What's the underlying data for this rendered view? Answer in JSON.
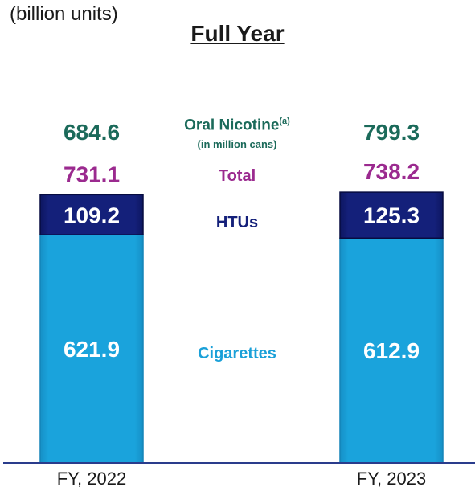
{
  "unit_label": "(billion units)",
  "colors": {
    "oral_nicotine": "#1b6a5a",
    "total": "#9b2a8f",
    "htus": "#14207a",
    "cigarettes": "#1aa0d8",
    "axis": "#2a3c8c"
  },
  "labels": {
    "oral_nicotine": "Oral Nicotine",
    "oral_nicotine_sup": "(a)",
    "oral_nicotine_unit": "(in million cans)",
    "total": "Total",
    "htus": "HTUs",
    "cigarettes": "Cigarettes"
  },
  "chart_data": {
    "type": "bar",
    "stacked": true,
    "title": "Full Year",
    "categories": [
      "FY, 2022",
      "FY, 2023"
    ],
    "series": [
      {
        "name": "Cigarettes",
        "values": [
          621.9,
          612.9
        ]
      },
      {
        "name": "HTUs",
        "values": [
          109.2,
          125.3
        ]
      }
    ],
    "totals": [
      731.1,
      738.2
    ],
    "oral_nicotine": [
      684.6,
      799.3
    ],
    "ylim": [
      0,
      745
    ],
    "grid": false,
    "legend": "center"
  }
}
